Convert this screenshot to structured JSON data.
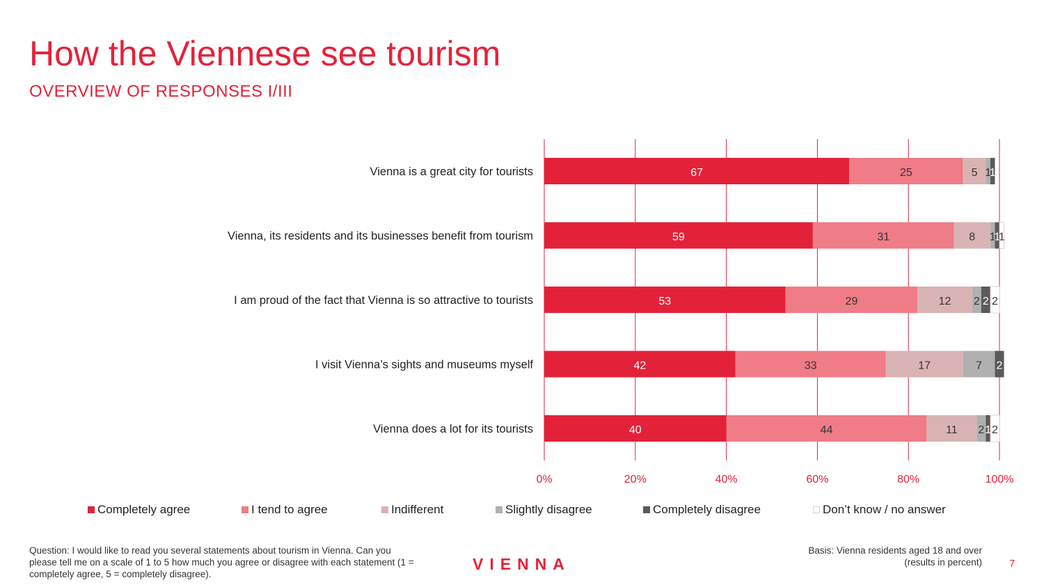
{
  "title": "How the Viennese see tourism",
  "subtitle": "OVERVIEW OF RESPONSES I/III",
  "footnote": "Question: I would like to read you several statements about tourism in Vienna. Can you please tell me on a scale of 1 to 5 how much you agree or disagree with each statement (1 = completely agree, 5 = completely disagree).",
  "basis_line1": "Basis: Vienna residents aged 18 and over",
  "basis_line2": "(results in percent)",
  "logo": "VIENNA",
  "page_number": "7",
  "colors": {
    "accent": "#e3223a",
    "completely_agree": "#e3223a",
    "tend_to_agree": "#ef7c86",
    "indifferent": "#d9b3b3",
    "slightly_disagree": "#b0b0b0",
    "completely_disagree": "#5a5a5a",
    "dont_know": "#ffffff"
  },
  "chart_data": {
    "type": "bar",
    "orientation": "horizontal",
    "stacked": true,
    "categories": [
      "Vienna is a great city for tourists",
      "Vienna, its residents and its businesses benefit from tourism",
      "I am proud of the fact that Vienna is so attractive to  tourists",
      "I visit Vienna’s sights and museums myself",
      "Vienna does a lot for its tourists"
    ],
    "series": [
      {
        "name": "Completely agree",
        "values": [
          67,
          59,
          53,
          42,
          40
        ]
      },
      {
        "name": "I tend to agree",
        "values": [
          25,
          31,
          29,
          33,
          44
        ]
      },
      {
        "name": "Indifferent",
        "values": [
          5,
          8,
          12,
          17,
          11
        ]
      },
      {
        "name": "Slightly disagree",
        "values": [
          1,
          1,
          2,
          7,
          2
        ]
      },
      {
        "name": "Completely disagree",
        "values": [
          1,
          1,
          2,
          2,
          1
        ]
      },
      {
        "name": "Don’t know / no answer",
        "values": [
          0,
          1,
          2,
          0,
          2
        ]
      }
    ],
    "labels": [
      [
        "67",
        "25",
        "5",
        "1",
        "1",
        ""
      ],
      [
        "59",
        "31",
        "8",
        "1",
        "1",
        "1"
      ],
      [
        "53",
        "29",
        "12",
        "2",
        "2",
        "2"
      ],
      [
        "42",
        "33",
        "17",
        "7",
        "2",
        ""
      ],
      [
        "40",
        "44",
        "11",
        "2",
        "1",
        "2"
      ]
    ],
    "x_ticks": [
      "0%",
      "20%",
      "40%",
      "60%",
      "80%",
      "100%"
    ],
    "xlim": [
      0,
      100
    ],
    "grid": true,
    "legend_position": "bottom"
  }
}
